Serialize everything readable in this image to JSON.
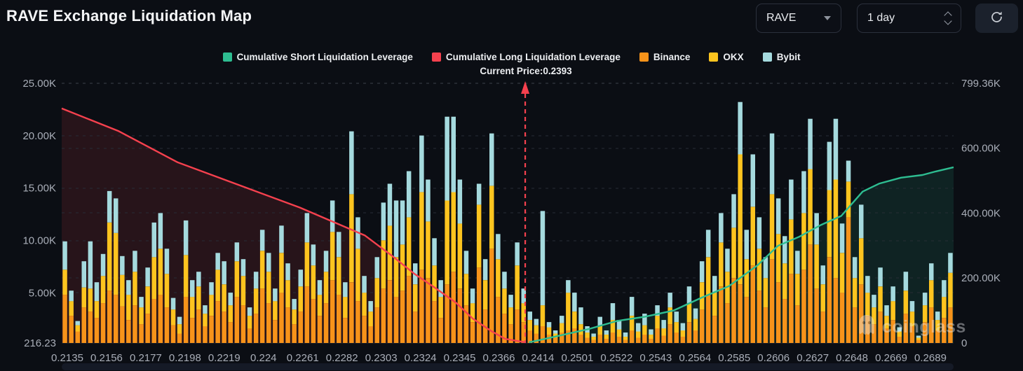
{
  "header": {
    "title": "RAVE Exchange Liquidation Map"
  },
  "controls": {
    "coin": "RAVE",
    "interval": "1 day",
    "refresh_icon": "refresh-icon"
  },
  "watermark": {
    "text": "coinglass",
    "icon": "coinglass-ghost-icon"
  },
  "chart_data": {
    "type": "bar",
    "title": "RAVE Exchange Liquidation Map",
    "current_price": 0.2393,
    "current_price_label": "Current Price:0.2393",
    "current_price_frac": 0.5197,
    "grid": "dashed-horizontal",
    "legend_position": "top-center",
    "legend": [
      {
        "label": "Cumulative Short Liquidation Leverage",
        "color": "#2ebd91"
      },
      {
        "label": "Cumulative Long Liquidation Leverage",
        "color": "#f5414e"
      },
      {
        "label": "Binance",
        "color": "#f7931a"
      },
      {
        "label": "OKX",
        "color": "#fdc41f"
      },
      {
        "label": "Bybit",
        "color": "#a5dade"
      }
    ],
    "x_axis": {
      "min": 0.2135,
      "max": 0.2689,
      "tick_labels": [
        "0.2135",
        "0.2156",
        "0.2177",
        "0.2198",
        "0.2219",
        "0.224",
        "0.2261",
        "0.2282",
        "0.2303",
        "0.2324",
        "0.2345",
        "0.2366",
        "0.2414",
        "0.2501",
        "0.2522",
        "0.2543",
        "0.2564",
        "0.2585",
        "0.2606",
        "0.2627",
        "0.2648",
        "0.2669",
        "0.2689"
      ]
    },
    "left_axis": {
      "min": 216.23,
      "max": 25000,
      "ticks": [
        {
          "label": "216.23",
          "value": 216.23
        },
        {
          "label": "5.00K",
          "value": 5000
        },
        {
          "label": "10.00K",
          "value": 10000
        },
        {
          "label": "15.00K",
          "value": 15000
        },
        {
          "label": "20.00K",
          "value": 20000
        },
        {
          "label": "25.00K",
          "value": 25000
        }
      ]
    },
    "right_axis": {
      "min": 0,
      "max": 799360,
      "ticks": [
        {
          "label": "0",
          "value": 0
        },
        {
          "label": "200.00K",
          "value": 200000
        },
        {
          "label": "400.00K",
          "value": 400000
        },
        {
          "label": "600.00K",
          "value": 600000
        },
        {
          "label": "799.36K",
          "value": 799360
        }
      ]
    },
    "bars_axis": "left",
    "bars_unit": "K",
    "series": [
      {
        "name": "Binance",
        "color": "#f7931a",
        "values": [
          4.6,
          2.6,
          1.1,
          3.4,
          3.0,
          2.4,
          3.8,
          5.0,
          4.6,
          3.5,
          2.2,
          3.6,
          1.8,
          2.8,
          4.2,
          4.6,
          3.4,
          1.7,
          0.9,
          4.4,
          2.4,
          3.2,
          1.6,
          2.6,
          4.0,
          3.0,
          2.0,
          4.4,
          3.6,
          1.4,
          2.8,
          5.2,
          3.8,
          2.2,
          4.8,
          3.4,
          1.8,
          3.0,
          5.4,
          4.2,
          2.6,
          3.8,
          6.0,
          4.6,
          2.4,
          5.8,
          4.0,
          2.6,
          1.6,
          3.4,
          5.2,
          6.0,
          4.4,
          5.0,
          6.4,
          3.0,
          7.0,
          6.2,
          4.0,
          2.4,
          5.6,
          6.8,
          5.2,
          3.6,
          2.0,
          7.2,
          3.2,
          9.0,
          4.4,
          2.8,
          1.8,
          3.2,
          2.0,
          1.2,
          0.9,
          1.6,
          0.8,
          0.5,
          1.0,
          1.2,
          1.4,
          0.8,
          0.5,
          0.3,
          0.8,
          0.4,
          1.0,
          0.6,
          0.3,
          1.2,
          0.5,
          0.8,
          0.4,
          1.4,
          0.7,
          1.8,
          1.0,
          0.6,
          2.0,
          1.2,
          3.2,
          4.6,
          2.6,
          5.4,
          3.8,
          6.2,
          5.6,
          4.4,
          7.4,
          5.0,
          3.4,
          8.0,
          5.8,
          4.2,
          6.6,
          3.6,
          7.0,
          9.4,
          5.2,
          3.0,
          8.2,
          6.2,
          4.8,
          12.0,
          3.4,
          5.6,
          2.6,
          1.8,
          3.0,
          1.4,
          2.2,
          0.6,
          2.8,
          1.6,
          0.3,
          2.0,
          3.4,
          1.2,
          2.4,
          3.4
        ]
      },
      {
        "name": "OKX",
        "color": "#fdc41f",
        "values": [
          2.4,
          1.4,
          0.6,
          1.9,
          2.2,
          1.6,
          2.6,
          6.5,
          5.9,
          3.0,
          2.4,
          3.2,
          1.6,
          2.6,
          4.0,
          4.4,
          3.2,
          1.5,
          0.9,
          4.0,
          2.0,
          2.2,
          1.2,
          2.0,
          3.0,
          2.6,
          1.6,
          3.4,
          2.8,
          1.2,
          2.4,
          3.6,
          3.0,
          1.8,
          3.8,
          2.6,
          1.4,
          2.4,
          4.2,
          3.2,
          2.0,
          3.0,
          4.6,
          3.6,
          2.0,
          8.4,
          5.0,
          2.2,
          1.4,
          2.8,
          4.6,
          5.2,
          3.8,
          4.4,
          5.6,
          2.6,
          7.4,
          5.4,
          3.4,
          2.0,
          8.0,
          7.6,
          6.2,
          3.0,
          1.8,
          6.0,
          2.8,
          6.0,
          3.6,
          2.4,
          1.6,
          4.2,
          1.8,
          1.0,
          0.8,
          2.0,
          0.7,
          0.4,
          0.9,
          3.6,
          1.6,
          1.0,
          0.5,
          0.3,
          0.8,
          0.4,
          1.2,
          0.7,
          0.3,
          1.4,
          0.6,
          0.9,
          0.4,
          1.2,
          0.7,
          1.6,
          1.0,
          0.6,
          1.8,
          1.1,
          2.6,
          3.6,
          2.2,
          4.2,
          3.0,
          4.8,
          12.4,
          3.6,
          5.6,
          4.0,
          2.8,
          6.2,
          4.6,
          3.4,
          5.2,
          3.0,
          5.4,
          7.2,
          4.2,
          2.6,
          6.4,
          9.4,
          3.8,
          3.4,
          2.8,
          4.4,
          2.2,
          1.6,
          2.4,
          1.2,
          1.8,
          0.5,
          2.2,
          1.4,
          0.2,
          1.6,
          2.6,
          1.0,
          2.0,
          3.3
        ]
      },
      {
        "name": "Bybit",
        "color": "#a5dade",
        "values": [
          2.7,
          1.0,
          0.4,
          2.5,
          4.5,
          1.8,
          2.1,
          3.0,
          3.3,
          1.8,
          1.4,
          2.0,
          1.0,
          1.8,
          3.3,
          3.4,
          2.4,
          1.1,
          0.7,
          3.3,
          1.6,
          1.4,
          0.8,
          1.2,
          1.6,
          2.2,
          1.2,
          1.8,
          1.6,
          0.8,
          1.6,
          2.0,
          1.8,
          1.2,
          2.6,
          1.6,
          1.0,
          1.6,
          2.8,
          2.0,
          1.4,
          2.0,
          3.0,
          2.4,
          1.4,
          6.0,
          3.0,
          1.6,
          1.0,
          2.0,
          3.6,
          4.0,
          5.4,
          4.2,
          4.4,
          2.0,
          5.4,
          4.0,
          2.6,
          1.6,
          8.0,
          7.2,
          4.2,
          2.2,
          1.4,
          2.0,
          2.0,
          5.0,
          2.4,
          1.6,
          1.2,
          2.2,
          1.4,
          0.8,
          0.6,
          9.0,
          0.5,
          0.3,
          0.7,
          1.2,
          1.8,
          1.6,
          0.6,
          0.3,
          0.9,
          0.4,
          1.6,
          0.9,
          0.4,
          1.8,
          0.8,
          1.1,
          0.5,
          1.0,
          0.8,
          1.4,
          1.0,
          0.7,
          1.6,
          1.0,
          2.0,
          2.6,
          1.6,
          2.8,
          2.2,
          3.2,
          5.0,
          2.8,
          5.0,
          3.0,
          2.0,
          5.8,
          3.4,
          2.6,
          3.8,
          2.2,
          4.0,
          4.8,
          3.0,
          1.8,
          4.6,
          5.8,
          2.8,
          2.0,
          2.0,
          3.2,
          1.6,
          1.2,
          1.8,
          1.0,
          1.4,
          0.4,
          1.8,
          1.0,
          0.2,
          1.2,
          1.6,
          0.8,
          1.6,
          1.9
        ]
      }
    ],
    "lines": [
      {
        "name": "Cumulative Long Liquidation Leverage",
        "color": "#f5414e",
        "axis": "right",
        "unit": "K",
        "fill_alpha": 0.12,
        "points": [
          [
            0,
            722
          ],
          [
            0.064,
            652
          ],
          [
            0.13,
            556
          ],
          [
            0.198,
            487
          ],
          [
            0.267,
            417
          ],
          [
            0.34,
            331
          ],
          [
            0.371,
            267
          ],
          [
            0.395,
            214
          ],
          [
            0.418,
            171
          ],
          [
            0.442,
            124
          ],
          [
            0.461,
            75
          ],
          [
            0.481,
            38
          ],
          [
            0.497,
            13
          ],
          [
            0.52,
            2
          ]
        ]
      },
      {
        "name": "Cumulative Short Liquidation Leverage",
        "color": "#2ebd91",
        "axis": "right",
        "unit": "K",
        "fill_alpha": 0.12,
        "points": [
          [
            0.524,
            2
          ],
          [
            0.56,
            24
          ],
          [
            0.591,
            43
          ],
          [
            0.623,
            68
          ],
          [
            0.654,
            81
          ],
          [
            0.686,
            100
          ],
          [
            0.717,
            139
          ],
          [
            0.748,
            175
          ],
          [
            0.78,
            239
          ],
          [
            0.803,
            299
          ],
          [
            0.827,
            327
          ],
          [
            0.851,
            363
          ],
          [
            0.874,
            391
          ],
          [
            0.898,
            466
          ],
          [
            0.917,
            491
          ],
          [
            0.941,
            509
          ],
          [
            0.965,
            517
          ],
          [
            0.98,
            528
          ],
          [
            1,
            541
          ]
        ]
      }
    ]
  }
}
